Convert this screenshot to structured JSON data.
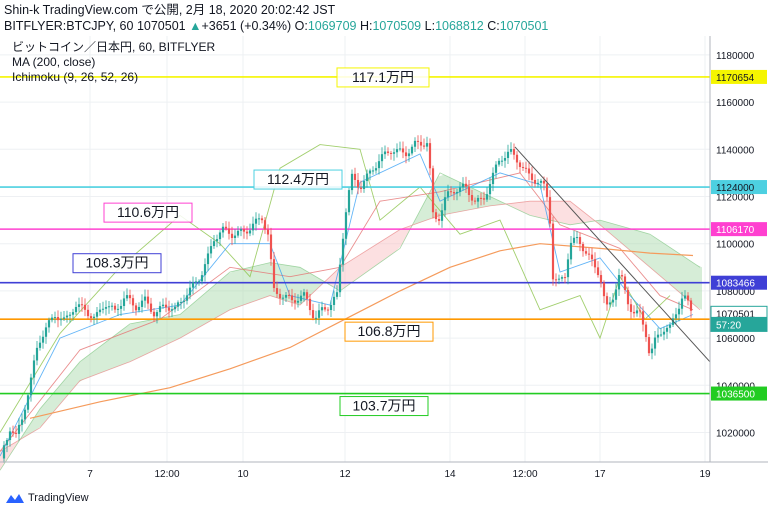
{
  "header": {
    "line1": "Shin-k TradingView.com で公開, 2月 18, 2020 20:02:42 JST",
    "symbol": "BITFLYER:BTCJPY, 60",
    "last": "1070501",
    "change_arrow": "▲",
    "change": "+3651 (+0.34%)",
    "o_label": "O:",
    "o_value": "1069709",
    "h_label": "H:",
    "h_value": "1070509",
    "l_label": "L:",
    "l_value": "1068812",
    "c_label": "C:",
    "c_value": "1070501"
  },
  "footer": {
    "brand": "TradingView"
  },
  "chart_data": {
    "type": "candlestick",
    "legend_lines": [
      "ビットコイン／日本円, 60, BITFLYER",
      "MA (200, close)",
      "Ichimoku (9, 26, 52, 26)"
    ],
    "ylim": [
      1007500,
      1188000
    ],
    "y_ticks": [
      1020000,
      1040000,
      1060000,
      1080000,
      1100000,
      1120000,
      1140000,
      1160000,
      1180000
    ],
    "x_ticks": [
      "7",
      "12:00",
      "10",
      "12",
      "14",
      "12:00",
      "17",
      "19"
    ],
    "colors": {
      "up": "#26a69a",
      "down": "#ef5350",
      "ma200": "#f59b5c",
      "lagging_span": "#8bc34a",
      "conversion": "#2196f3",
      "base": "#e57373",
      "cloud_bull": "#a5d6a7",
      "cloud_bear": "#f8bbbc",
      "trendline": "#555555"
    },
    "horizontal_levels": [
      {
        "price": 1170654,
        "label": "117.1万円",
        "color": "#f5f500"
      },
      {
        "price": 1124000,
        "label": "112.4万円",
        "color": "#4dd0e1"
      },
      {
        "price": 1106170,
        "label": "110.6万円",
        "color": "#ff40d0"
      },
      {
        "price": 1083466,
        "label": "108.3万円",
        "color": "#3f3fd6"
      },
      {
        "price": 1068024,
        "label": "106.8万円",
        "color": "#ff9800"
      },
      {
        "price": 1036500,
        "label": "103.7万円",
        "color": "#22cc22"
      }
    ],
    "price_markers": [
      {
        "price": 1070501,
        "label": "1070501",
        "bg": "#ffffff",
        "fg": "#131722",
        "border": "#26a69a"
      },
      {
        "price": 1065800,
        "label": "57:20",
        "bg": "#26a69a",
        "fg": "#ffffff",
        "border": "#26a69a"
      }
    ],
    "price_path": [
      [
        0,
        1009000
      ],
      [
        5,
        1015000
      ],
      [
        10,
        1022000
      ],
      [
        16,
        1018000
      ],
      [
        22,
        1026000
      ],
      [
        30,
        1040000
      ],
      [
        38,
        1058000
      ],
      [
        46,
        1064000
      ],
      [
        55,
        1070000
      ],
      [
        65,
        1067000
      ],
      [
        75,
        1074000
      ],
      [
        85,
        1072000
      ],
      [
        95,
        1068000
      ],
      [
        105,
        1075000
      ],
      [
        115,
        1071000
      ],
      [
        125,
        1078000
      ],
      [
        135,
        1073000
      ],
      [
        145,
        1076000
      ],
      [
        155,
        1070000
      ],
      [
        165,
        1074000
      ],
      [
        175,
        1072000
      ],
      [
        185,
        1078000
      ],
      [
        193,
        1082000
      ],
      [
        200,
        1086000
      ],
      [
        207,
        1093000
      ],
      [
        214,
        1102000
      ],
      [
        222,
        1106000
      ],
      [
        232,
        1104000
      ],
      [
        245,
        1105000
      ],
      [
        253,
        1108000
      ],
      [
        262,
        1111000
      ],
      [
        268,
        1104000
      ],
      [
        274,
        1080000
      ],
      [
        282,
        1078000
      ],
      [
        292,
        1076000
      ],
      [
        305,
        1078000
      ],
      [
        315,
        1068000
      ],
      [
        322,
        1072000
      ],
      [
        330,
        1074000
      ],
      [
        337,
        1078000
      ],
      [
        342,
        1100000
      ],
      [
        347,
        1118000
      ],
      [
        352,
        1128000
      ],
      [
        360,
        1124000
      ],
      [
        370,
        1130000
      ],
      [
        380,
        1136000
      ],
      [
        392,
        1140000
      ],
      [
        405,
        1138000
      ],
      [
        415,
        1142000
      ],
      [
        428,
        1143000
      ],
      [
        433,
        1112000
      ],
      [
        438,
        1110000
      ],
      [
        446,
        1120000
      ],
      [
        455,
        1123000
      ],
      [
        465,
        1124000
      ],
      [
        475,
        1118000
      ],
      [
        483,
        1118000
      ],
      [
        490,
        1126000
      ],
      [
        500,
        1136000
      ],
      [
        510,
        1139000
      ],
      [
        520,
        1134000
      ],
      [
        530,
        1128000
      ],
      [
        540,
        1126000
      ],
      [
        546,
        1123000
      ],
      [
        550,
        1110000
      ],
      [
        553,
        1086000
      ],
      [
        558,
        1083000
      ],
      [
        565,
        1087000
      ],
      [
        570,
        1100000
      ],
      [
        578,
        1102000
      ],
      [
        585,
        1097000
      ],
      [
        592,
        1092000
      ],
      [
        600,
        1087000
      ],
      [
        606,
        1072000
      ],
      [
        612,
        1076000
      ],
      [
        620,
        1088000
      ],
      [
        627,
        1076000
      ],
      [
        633,
        1071000
      ],
      [
        640,
        1070000
      ],
      [
        646,
        1062000
      ],
      [
        650,
        1052000
      ],
      [
        656,
        1060000
      ],
      [
        663,
        1064000
      ],
      [
        670,
        1064000
      ],
      [
        676,
        1071000
      ],
      [
        683,
        1078000
      ],
      [
        689,
        1074000
      ],
      [
        693,
        1070000
      ]
    ],
    "ma200_path": [
      [
        30,
        1026000
      ],
      [
        100,
        1033000
      ],
      [
        170,
        1039000
      ],
      [
        230,
        1047000
      ],
      [
        290,
        1056000
      ],
      [
        345,
        1068000
      ],
      [
        400,
        1080000
      ],
      [
        450,
        1090000
      ],
      [
        500,
        1097000
      ],
      [
        540,
        1100000
      ],
      [
        600,
        1098000
      ],
      [
        650,
        1096000
      ],
      [
        693,
        1095000
      ]
    ],
    "conversion_path": [
      [
        0,
        1010000
      ],
      [
        60,
        1060000
      ],
      [
        120,
        1070000
      ],
      [
        180,
        1074000
      ],
      [
        230,
        1100000
      ],
      [
        270,
        1100000
      ],
      [
        290,
        1078000
      ],
      [
        330,
        1074000
      ],
      [
        360,
        1126000
      ],
      [
        420,
        1138000
      ],
      [
        440,
        1118000
      ],
      [
        500,
        1130000
      ],
      [
        540,
        1125000
      ],
      [
        560,
        1088000
      ],
      [
        600,
        1094000
      ],
      [
        630,
        1078000
      ],
      [
        660,
        1064000
      ],
      [
        693,
        1070000
      ]
    ],
    "base_path": [
      [
        0,
        1012000
      ],
      [
        80,
        1055000
      ],
      [
        160,
        1068000
      ],
      [
        230,
        1090000
      ],
      [
        290,
        1086000
      ],
      [
        340,
        1090000
      ],
      [
        380,
        1118000
      ],
      [
        440,
        1122000
      ],
      [
        520,
        1130000
      ],
      [
        560,
        1108000
      ],
      [
        620,
        1098000
      ],
      [
        660,
        1078000
      ],
      [
        693,
        1072000
      ]
    ],
    "lagging_path": [
      [
        0,
        1020000
      ],
      [
        60,
        1062000
      ],
      [
        120,
        1090000
      ],
      [
        180,
        1112000
      ],
      [
        220,
        1100000
      ],
      [
        250,
        1086000
      ],
      [
        280,
        1132000
      ],
      [
        320,
        1142000
      ],
      [
        360,
        1140000
      ],
      [
        380,
        1110000
      ],
      [
        420,
        1124000
      ],
      [
        460,
        1104000
      ],
      [
        500,
        1110000
      ],
      [
        540,
        1072000
      ],
      [
        580,
        1078000
      ],
      [
        600,
        1060000
      ],
      [
        620,
        1086000
      ],
      [
        645,
        1068000
      ],
      [
        670,
        1078000
      ]
    ],
    "cloud_a_path": [
      [
        0,
        1004000
      ],
      [
        40,
        1030000
      ],
      [
        80,
        1050000
      ],
      [
        130,
        1066000
      ],
      [
        180,
        1070000
      ],
      [
        230,
        1088000
      ],
      [
        270,
        1092000
      ],
      [
        300,
        1090000
      ],
      [
        340,
        1080000
      ],
      [
        400,
        1098000
      ],
      [
        440,
        1130000
      ],
      [
        490,
        1120000
      ],
      [
        530,
        1112000
      ],
      [
        570,
        1108000
      ],
      [
        600,
        1110000
      ],
      [
        650,
        1104000
      ],
      [
        700,
        1090000
      ]
    ],
    "cloud_b_path": [
      [
        0,
        1012000
      ],
      [
        40,
        1022000
      ],
      [
        80,
        1042000
      ],
      [
        130,
        1050000
      ],
      [
        180,
        1060000
      ],
      [
        230,
        1072000
      ],
      [
        270,
        1078000
      ],
      [
        300,
        1074000
      ],
      [
        340,
        1090000
      ],
      [
        400,
        1106000
      ],
      [
        440,
        1112000
      ],
      [
        490,
        1116000
      ],
      [
        530,
        1118000
      ],
      [
        570,
        1118000
      ],
      [
        600,
        1108000
      ],
      [
        650,
        1090000
      ],
      [
        700,
        1072000
      ]
    ],
    "trendline": [
      [
        515,
        1141000
      ],
      [
        712,
        1049000
      ]
    ]
  }
}
